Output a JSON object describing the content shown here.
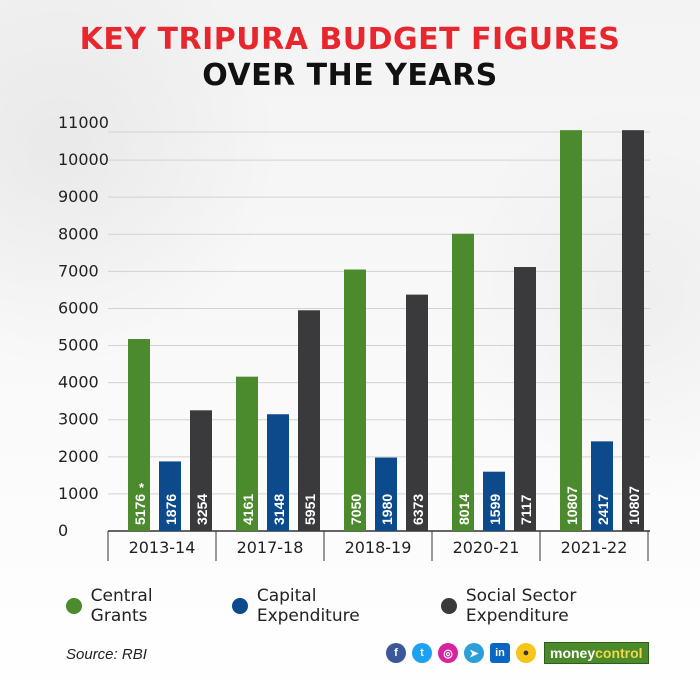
{
  "title_line1": "KEY TRIPURA BUDGET FIGURES",
  "title_line2": "OVER THE YEARS",
  "chart_data": {
    "type": "bar",
    "categories": [
      "2013-14",
      "2017-18",
      "2018-19",
      "2020-21",
      "2021-22"
    ],
    "series": [
      {
        "name": "Central Grants",
        "color": "#4b8b2e",
        "values": [
          5176,
          4161,
          7050,
          8014,
          10807
        ],
        "labels": [
          "5176",
          "4161",
          "7050",
          "8014",
          "10807"
        ]
      },
      {
        "name": "Capital Expenditure",
        "color": "#0d4a8c",
        "values": [
          1876,
          3148,
          1980,
          1599,
          2417
        ],
        "labels": [
          "1876",
          "3148",
          "1980",
          "1599",
          "2417"
        ]
      },
      {
        "name": "Social Sector Expenditure",
        "color": "#3a3a3c",
        "values": [
          3254,
          5951,
          6373,
          7117,
          10807
        ],
        "labels": [
          "3254",
          "5951",
          "6373",
          "7117",
          "10807"
        ]
      }
    ],
    "yticks": [
      "0",
      "1000",
      "2000",
      "3000",
      "4000",
      "5000",
      "6000",
      "7000",
      "8000",
      "9000",
      "10000",
      "11000"
    ],
    "ylim": [
      0,
      11000
    ],
    "annotation": "*",
    "grid": true,
    "legend_position": "bottom"
  },
  "source": "Source: RBI",
  "social_icons": [
    "facebook-icon",
    "twitter-icon",
    "instagram-icon",
    "telegram-icon",
    "linkedin-icon",
    "koo-icon"
  ],
  "brand": {
    "part1": "money",
    "part2": "control"
  }
}
